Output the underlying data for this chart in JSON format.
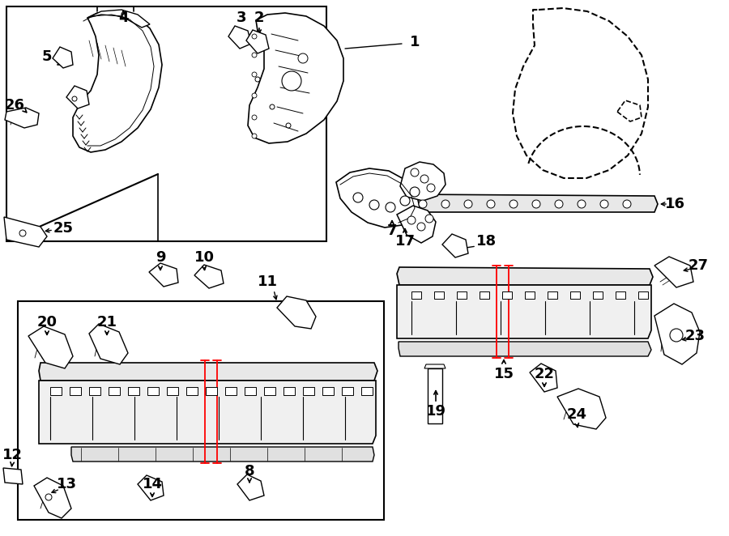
{
  "bg_color": "#ffffff",
  "line_color": "#000000",
  "red_color": "#ff0000",
  "gray_light": "#e8e8e8",
  "gray_fill": "#f0f0f0"
}
